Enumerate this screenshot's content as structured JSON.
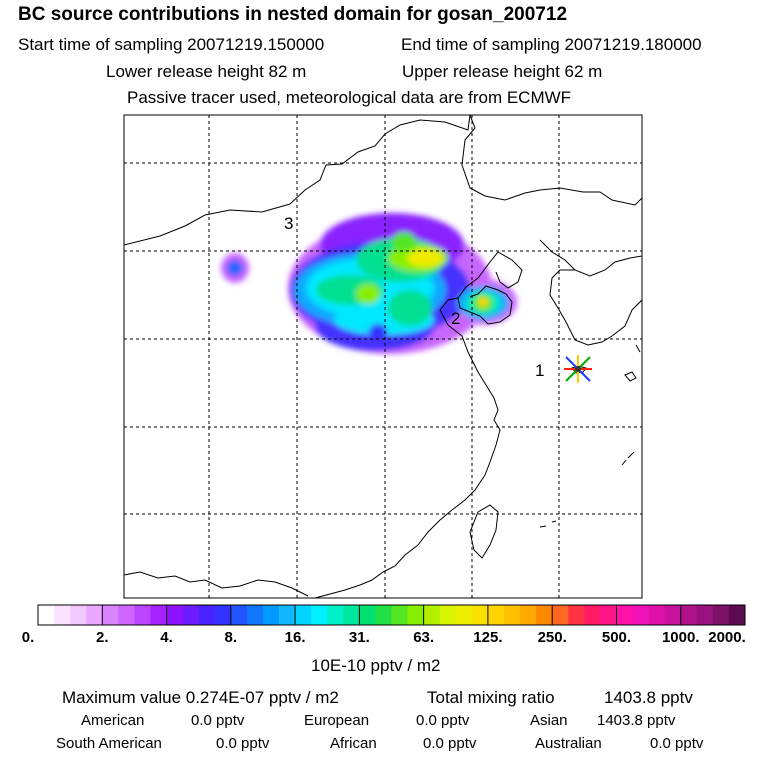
{
  "header": {
    "title": "BC  source contributions in nested domain for gosan_200712",
    "start_time": "Start time of sampling 20071219.150000",
    "end_time": "End time of sampling 20071219.180000",
    "lower_release": "Lower release height   82 m",
    "upper_release": "Upper release height   62 m",
    "tracer_note": "Passive tracer used, meteorological data are from ECMWF"
  },
  "map": {
    "region_labels": [
      "1",
      "2",
      "3"
    ]
  },
  "colorbar": {
    "unit": "10E-10 pptv / m2",
    "tick_labels": [
      "0.",
      "2.",
      "4.",
      "8.",
      "16.",
      "31.",
      "63.",
      "125.",
      "250.",
      "500.",
      "1000.",
      "2000."
    ],
    "colors": [
      "#ffffff",
      "#fbe3ff",
      "#f3c8ff",
      "#eaa9ff",
      "#d983ff",
      "#cc66ff",
      "#bb44ff",
      "#a822ff",
      "#8f11ff",
      "#6e1cff",
      "#4a22ff",
      "#3333ff",
      "#2255ff",
      "#1177ff",
      "#0099ff",
      "#11b8ff",
      "#00d5ff",
      "#00f0ff",
      "#00f0c8",
      "#00e8a0",
      "#00e070",
      "#22e044",
      "#55e622",
      "#88ee00",
      "#b2f000",
      "#d8f400",
      "#ecf000",
      "#f8e000",
      "#ffd400",
      "#ffc000",
      "#ffa800",
      "#ff8800",
      "#ff6622",
      "#ff3344",
      "#ff1a66",
      "#ff1488",
      "#ff11a8",
      "#f011b8",
      "#dd11aa",
      "#c8119c",
      "#b0118c",
      "#98117c",
      "#7c1168",
      "#5c0c4e"
    ]
  },
  "summary": {
    "max_label": "Maximum value  0.274E-07 pptv / m2",
    "total_label": "Total mixing ratio",
    "total_value": "1403.8 pptv",
    "american_label": "American",
    "american_value": "0.0 pptv",
    "european_label": "European",
    "european_value": "0.0 pptv",
    "asian_label": "Asian",
    "asian_value": "1403.8 pptv",
    "south_american_label": "South American",
    "south_american_value": "0.0 pptv",
    "african_label": "African",
    "african_value": "0.0 pptv",
    "australian_label": "Australian",
    "australian_value": "0.0 pptv"
  },
  "chart_data": {
    "type": "heatmap",
    "title": "BC  source contributions in nested domain for gosan_200712",
    "colorbar_label": "10E-10 pptv / m2",
    "colorbar_levels": [
      0,
      2,
      4,
      8,
      16,
      31,
      63,
      125,
      250,
      500,
      1000,
      2000
    ],
    "maximum_value": "0.274E-07 pptv / m2",
    "receptor": "gosan",
    "source_region_labels": [
      "1",
      "2",
      "3"
    ]
  }
}
